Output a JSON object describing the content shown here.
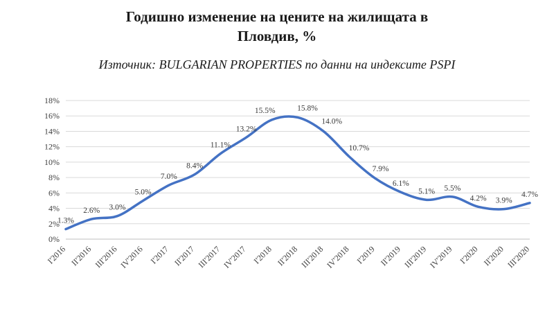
{
  "header": {
    "title_line1": "Годишно изменение на цените на жилищата в",
    "title_line2": "Пловдив, %",
    "subtitle": "Източник: BULGARIAN PROPERTIES по данни на индексите PSPI"
  },
  "chart_data": {
    "type": "line",
    "title": "Годишно изменение на цените на жилищата в Пловдив, %",
    "subtitle": "Източник: BULGARIAN PROPERTIES по данни на индексите PSPI",
    "categories": [
      "I'2016",
      "II'2016",
      "III'2016",
      "IV'2016",
      "I'2017",
      "II'2017",
      "III'2017",
      "IV'2017",
      "I'2018",
      "II'2018",
      "III'2018",
      "IV'2018",
      "I'2019",
      "II'2019",
      "III'2019",
      "IV'2019",
      "I'2020",
      "II'2020",
      "III'2020"
    ],
    "values": [
      1.3,
      2.6,
      3.0,
      5.0,
      7.0,
      8.4,
      11.1,
      13.2,
      15.5,
      15.8,
      14.0,
      10.7,
      7.9,
      6.1,
      5.1,
      5.5,
      4.2,
      3.9,
      4.7
    ],
    "ylabel": "",
    "xlabel": "",
    "ylim": [
      0,
      18
    ],
    "ytick_step": 2,
    "ytick_suffix": "%",
    "line_color": "#4472C4",
    "grid": true,
    "legend": "none",
    "label_offsets": {
      "8": [
        -10,
        -1
      ],
      "9": [
        14,
        -1
      ],
      "10": [
        12,
        -2
      ],
      "11": [
        14,
        0
      ],
      "12": [
        8,
        -1
      ]
    }
  }
}
